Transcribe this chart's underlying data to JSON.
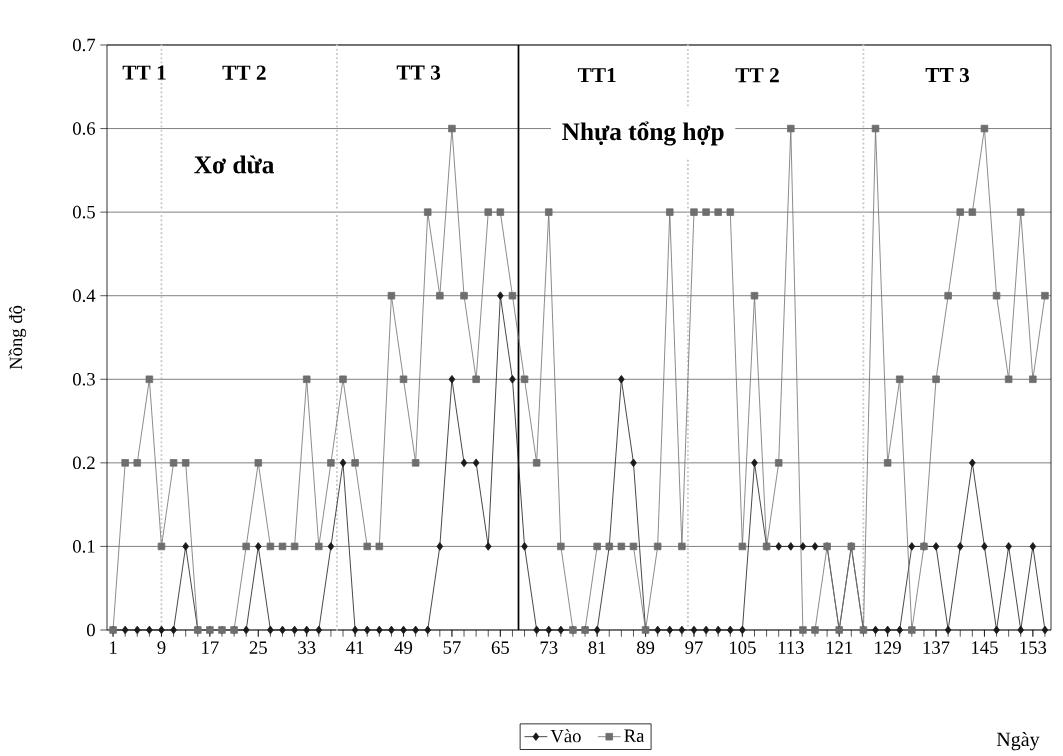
{
  "chart_data": {
    "type": "line",
    "xlabel": "Ngày",
    "ylabel": "Nồng độ",
    "x": [
      1,
      3,
      5,
      7,
      9,
      11,
      13,
      15,
      17,
      19,
      21,
      23,
      25,
      27,
      29,
      31,
      33,
      35,
      37,
      39,
      41,
      43,
      45,
      47,
      49,
      51,
      53,
      55,
      57,
      59,
      61,
      63,
      65,
      67,
      69,
      71,
      73,
      75,
      77,
      79,
      81,
      83,
      85,
      87,
      89,
      91,
      93,
      95,
      97,
      99,
      101,
      103,
      105,
      107,
      109,
      111,
      113,
      115,
      117,
      119,
      121,
      123,
      125,
      127,
      129,
      131,
      133,
      135,
      137,
      139,
      141,
      143,
      145,
      147,
      149,
      151,
      153,
      155
    ],
    "xlim": [
      0,
      156
    ],
    "xticks": [
      1,
      9,
      17,
      25,
      33,
      41,
      49,
      57,
      65,
      73,
      81,
      89,
      97,
      105,
      113,
      121,
      129,
      137,
      145,
      153
    ],
    "ylim": [
      0,
      0.7
    ],
    "yticks": [
      0,
      0.1,
      0.2,
      0.3,
      0.4,
      0.5,
      0.6,
      0.7
    ],
    "grid": "y",
    "legend": "bottom",
    "series": [
      {
        "name": "Vào",
        "color": "#1a1a1a",
        "marker": "diamond",
        "values": [
          0,
          0,
          0,
          0,
          0,
          0,
          0.1,
          0,
          0,
          0,
          0,
          0,
          0.1,
          0,
          0,
          0,
          0,
          0,
          0.1,
          0.2,
          0,
          0,
          0,
          0,
          0,
          0,
          0,
          0.1,
          0.3,
          0.2,
          0.2,
          0.1,
          0.4,
          0.3,
          0.1,
          0,
          0,
          0,
          0,
          0,
          0,
          0.1,
          0.3,
          0.2,
          0,
          0,
          0,
          0,
          0,
          0,
          0,
          0,
          0,
          0.2,
          0.1,
          0.1,
          0.1,
          0.1,
          0.1,
          0.1,
          0,
          0.1,
          0,
          0,
          0,
          0,
          0.1,
          0.1,
          0.1,
          0,
          0.1,
          0.2,
          0.1,
          0,
          0.1,
          0,
          0.1,
          0
        ]
      },
      {
        "name": "Ra",
        "color": "#6e6e6e",
        "marker": "square",
        "values": [
          0,
          0.2,
          0.2,
          0.3,
          0.1,
          0.2,
          0.2,
          0,
          0,
          0,
          0,
          0.1,
          0.2,
          0.1,
          0.1,
          0.1,
          0.3,
          0.1,
          0.2,
          0.3,
          0.2,
          0.1,
          0.1,
          0.4,
          0.3,
          0.2,
          0.5,
          0.4,
          0.6,
          0.4,
          0.3,
          0.5,
          0.5,
          0.4,
          0.3,
          0.2,
          0.5,
          0.1,
          0,
          0,
          0.1,
          0.1,
          0.1,
          0.1,
          0,
          0.1,
          0.5,
          0.1,
          0.5,
          0.5,
          0.5,
          0.5,
          0.1,
          0.4,
          0.1,
          0.2,
          0.6,
          0,
          0,
          0.1,
          0,
          0.1,
          0,
          0.6,
          0.2,
          0.3,
          0,
          0.1,
          0.3,
          0.4,
          0.5,
          0.5,
          0.6,
          0.4,
          0.3,
          0.5,
          0.3,
          0.4
        ]
      }
    ],
    "ref_lines": [
      {
        "axis": "x",
        "value": 9,
        "color": "#c8c8c8",
        "line_style": "dotted"
      },
      {
        "axis": "x",
        "value": 38,
        "color": "#c8c8c8",
        "line_style": "dotted"
      },
      {
        "axis": "x",
        "value": 96,
        "color": "#c8c8c8",
        "line_style": "dotted"
      },
      {
        "axis": "x",
        "value": 125,
        "color": "#c8c8c8",
        "line_style": "dotted"
      },
      {
        "axis": "x",
        "value": 68,
        "color": "#000000",
        "line_style": "solid"
      }
    ],
    "annotations": [
      "TT 1",
      "TT 2",
      "TT 3",
      "TT1",
      "TT 2",
      "TT 3",
      "Xơ dừa",
      "Nhựa tổng hợp"
    ]
  }
}
